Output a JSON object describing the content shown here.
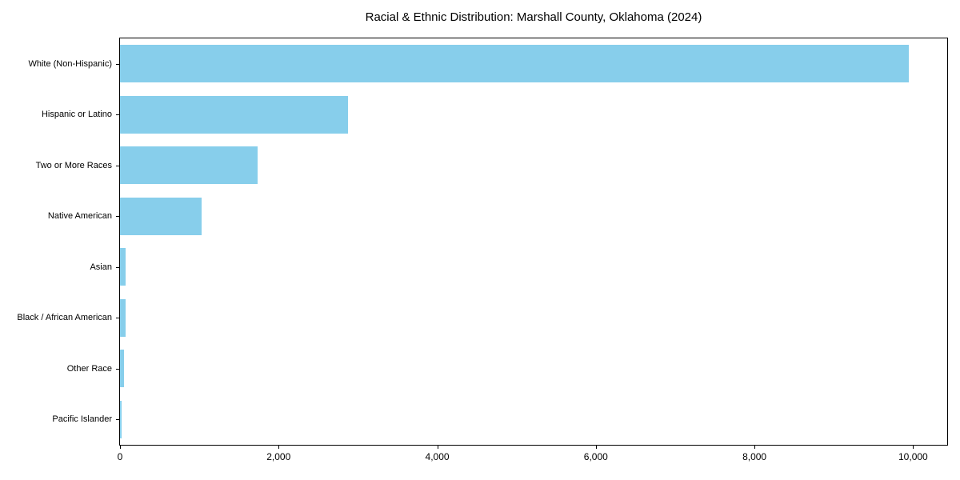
{
  "chart_data": {
    "type": "bar",
    "orientation": "horizontal",
    "title": "Racial & Ethnic Distribution: Marshall County, Oklahoma (2024)",
    "categories": [
      "White (Non-Hispanic)",
      "Hispanic or Latino",
      "Two or More Races",
      "Native American",
      "Asian",
      "Black / African American",
      "Other Race",
      "Pacific Islander"
    ],
    "values": [
      9950,
      2870,
      1730,
      1030,
      72,
      68,
      50,
      20
    ],
    "xlabel": "",
    "ylabel": "",
    "xlim": [
      0,
      10430
    ],
    "x_ticks": [
      0,
      2000,
      4000,
      6000,
      8000,
      10000
    ],
    "x_tick_labels": [
      "0",
      "2,000",
      "4,000",
      "6,000",
      "8,000",
      "10,000"
    ],
    "bar_color": "#87CEEB",
    "axis_color": "#000000",
    "background_color": "#FFFFFF",
    "grid": false,
    "legend_position": "none"
  }
}
